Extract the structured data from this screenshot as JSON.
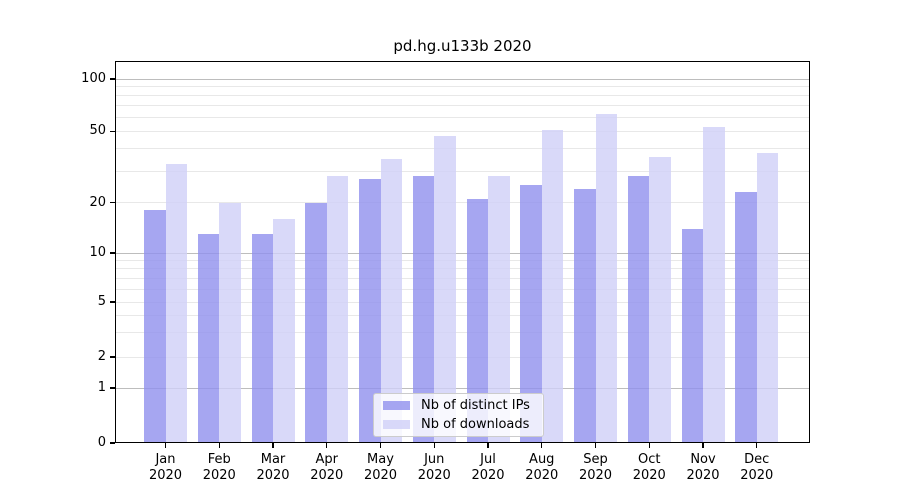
{
  "title": "pd.hg.u133b 2020",
  "chart_data": {
    "type": "bar",
    "title": "pd.hg.u133b 2020",
    "categories": [
      "Jan",
      "Feb",
      "Mar",
      "Apr",
      "May",
      "Jun",
      "Jul",
      "Aug",
      "Sep",
      "Oct",
      "Nov",
      "Dec"
    ],
    "year": "2020",
    "x_tick_labels": [
      "Jan 2020",
      "Feb 2020",
      "Mar 2020",
      "Apr 2020",
      "May 2020",
      "Jun 2020",
      "Jul 2020",
      "Aug 2020",
      "Sep 2020",
      "Oct 2020",
      "Nov 2020",
      "Dec 2020"
    ],
    "series": [
      {
        "key": "ips",
        "name": "Nb of distinct IPs",
        "color": "#a5a5f0",
        "fill_rgba": "rgba(144,144,238,0.8)",
        "values": [
          18,
          13,
          13,
          20,
          27,
          28,
          21,
          25,
          24,
          28,
          14,
          23
        ]
      },
      {
        "key": "downloads",
        "name": "Nb of downloads",
        "color": "#d8d8f8",
        "fill_rgba": "rgba(207,207,247,0.8)",
        "values": [
          33,
          20,
          16,
          28,
          35,
          47,
          28,
          51,
          63,
          36,
          53,
          38
        ]
      }
    ],
    "y_axis": {
      "scale": "symlog",
      "ticks": [
        100,
        50,
        20,
        10,
        5,
        2,
        1,
        0
      ],
      "major_gridlines": [
        1,
        10,
        100
      ],
      "minor_gridlines": [
        2,
        3,
        4,
        6,
        7,
        8,
        9,
        5,
        20,
        30,
        40,
        50,
        60,
        70,
        80,
        90
      ],
      "range": [
        0,
        127
      ]
    },
    "grid": true,
    "legend_position": "lower center",
    "colors": {
      "major_grid": "#bdbdbd",
      "minor_grid": "#e8e8e8",
      "axis": "#000000",
      "background": "#ffffff"
    }
  },
  "legend": {
    "items": [
      {
        "label": "Nb of distinct IPs"
      },
      {
        "label": "Nb of downloads"
      }
    ]
  }
}
